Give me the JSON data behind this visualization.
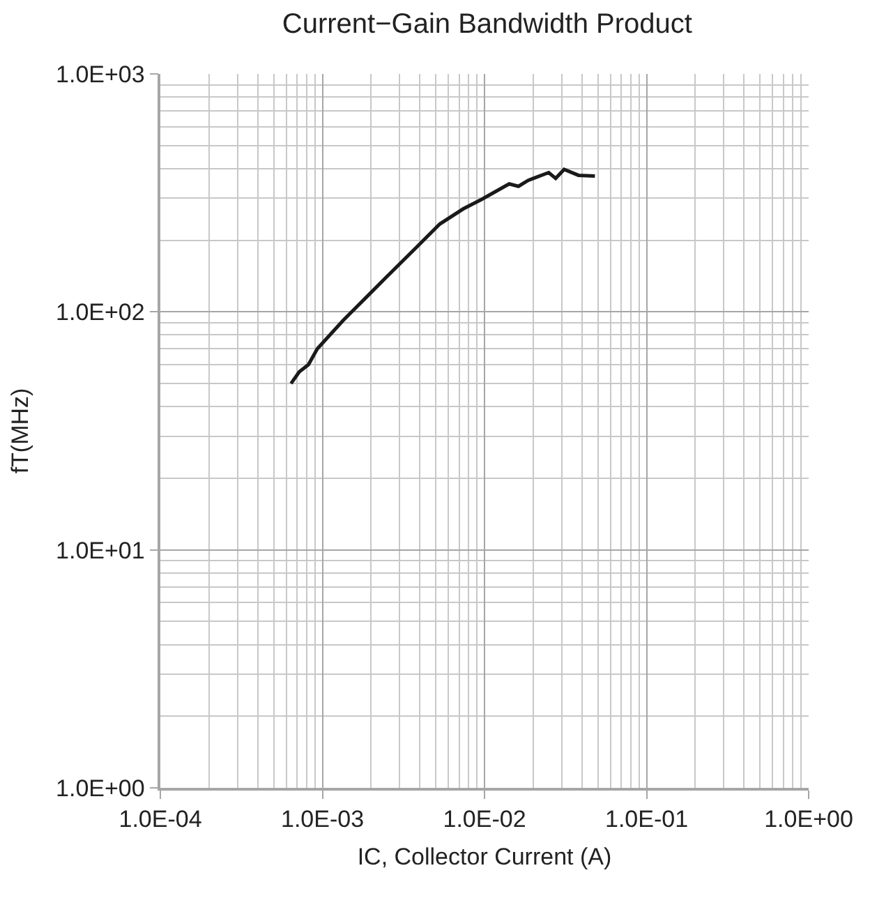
{
  "chart_data": {
    "type": "line",
    "title": "Current−Gain Bandwidth Product",
    "xlabel": "IC, Collector Current (A)",
    "ylabel": "fT(MHz)",
    "log": "xy",
    "grid": true,
    "marker": "none",
    "line_style": "solid",
    "xlim": [
      0.0001,
      1
    ],
    "ylim": [
      1,
      1000
    ],
    "xticks": [
      {
        "value": 0.0001,
        "label": "1.0E-04"
      },
      {
        "value": 0.001,
        "label": "1.0E-03"
      },
      {
        "value": 0.01,
        "label": "1.0E-02"
      },
      {
        "value": 0.1,
        "label": "1.0E-01"
      },
      {
        "value": 1,
        "label": "1.0E+00"
      }
    ],
    "yticks": [
      {
        "value": 1,
        "label": "1.0E+00"
      },
      {
        "value": 10,
        "label": "1.0E+01"
      },
      {
        "value": 100,
        "label": "1.0E+02"
      },
      {
        "value": 1000,
        "label": "1.0E+03"
      }
    ],
    "series": [
      {
        "color": "#1a1a1a",
        "x": [
          0.00064,
          0.00072,
          0.00082,
          0.00093,
          0.00134,
          0.00186,
          0.00243,
          0.00384,
          0.0053,
          0.0074,
          0.0096,
          0.0142,
          0.0162,
          0.0186,
          0.0249,
          0.0275,
          0.031,
          0.038,
          0.048
        ],
        "values": [
          50,
          56,
          60,
          70,
          92,
          115,
          138,
          188,
          234,
          271,
          297,
          345,
          337,
          357,
          385,
          364,
          397,
          375,
          372
        ]
      }
    ]
  }
}
